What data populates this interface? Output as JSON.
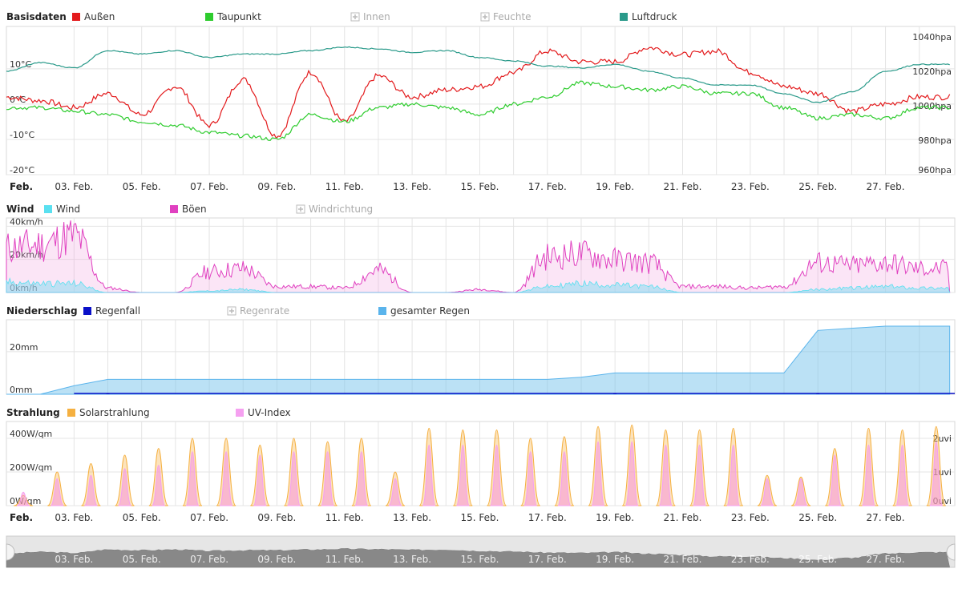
{
  "month_label": "Feb.",
  "date_ticks": [
    "03. Feb.",
    "05. Feb.",
    "07. Feb.",
    "09. Feb.",
    "11. Feb.",
    "13. Feb.",
    "15. Feb.",
    "17. Feb.",
    "19. Feb.",
    "21. Feb.",
    "23. Feb.",
    "25. Feb.",
    "27. Feb."
  ],
  "panels": [
    {
      "id": "basisdaten",
      "title": "Basisdaten",
      "legend": [
        {
          "label": "Außen",
          "color": "#e31a1c",
          "enabled": true
        },
        {
          "label": "Taupunkt",
          "color": "#2ecc2e",
          "enabled": true
        },
        {
          "label": "Innen",
          "color": "#bbbbbb",
          "enabled": false
        },
        {
          "label": "Feuchte",
          "color": "#bbbbbb",
          "enabled": false
        },
        {
          "label": "Luftdruck",
          "color": "#2a9a8a",
          "enabled": true
        }
      ],
      "left_axis": {
        "ticks": [
          "10°C",
          "0°C",
          "-10°C",
          "-20°C"
        ],
        "range": [
          -20,
          22
        ]
      },
      "right_axis": {
        "ticks": [
          "1040hpa",
          "1020hpa",
          "1000hpa",
          "980hpa",
          "960hpa"
        ],
        "range": [
          960,
          1046
        ]
      }
    },
    {
      "id": "wind",
      "title": "Wind",
      "legend": [
        {
          "label": "Wind",
          "color": "#5ae0f0",
          "enabled": true
        },
        {
          "label": "Böen",
          "color": "#e040c0",
          "enabled": true
        },
        {
          "label": "Windrichtung",
          "color": "#bbbbbb",
          "enabled": false
        }
      ],
      "left_axis": {
        "ticks": [
          "40km/h",
          "20km/h",
          "0km/h"
        ],
        "range": [
          0,
          45
        ]
      }
    },
    {
      "id": "niederschlag",
      "title": "Niederschlag",
      "legend": [
        {
          "label": "Regenfall",
          "color": "#0a10c8",
          "enabled": true
        },
        {
          "label": "Regenrate",
          "color": "#bbbbbb",
          "enabled": false
        },
        {
          "label": "gesamter Regen",
          "color": "#5ab4ec",
          "enabled": true
        }
      ],
      "left_axis": {
        "ticks": [
          "20mm",
          "0mm"
        ],
        "range": [
          0,
          35
        ]
      }
    },
    {
      "id": "strahlung",
      "title": "Strahlung",
      "legend": [
        {
          "label": "Solarstrahlung",
          "color": "#f5b040",
          "enabled": true
        },
        {
          "label": "UV-Index",
          "color": "#f5a0f0",
          "enabled": true
        }
      ],
      "left_axis": {
        "ticks": [
          "400W/qm",
          "200W/qm",
          "0W/qm"
        ],
        "range": [
          0,
          500
        ]
      },
      "right_axis": {
        "ticks": [
          "2uvi",
          "1uvi",
          "0uvi"
        ],
        "range": [
          0,
          2.5
        ]
      }
    }
  ],
  "chart_data": [
    {
      "type": "line",
      "title": "Basisdaten",
      "x_range": [
        "01. Feb.",
        "28. Feb."
      ],
      "series": [
        {
          "name": "Außen",
          "unit": "°C",
          "days": [
            1,
            2,
            3,
            4,
            5,
            6,
            7,
            8,
            9,
            10,
            11,
            12,
            13,
            14,
            15,
            16,
            17,
            18,
            19,
            20,
            21,
            22,
            23,
            24,
            25,
            26,
            27,
            28
          ],
          "values": [
            2,
            1,
            -1,
            3,
            -3,
            5,
            -6,
            7,
            -9,
            9,
            -5,
            8,
            2,
            4,
            5,
            9,
            15,
            12,
            12,
            16,
            14,
            15,
            9,
            5,
            3,
            -2,
            0,
            2
          ]
        },
        {
          "name": "Taupunkt",
          "unit": "°C",
          "days": [
            1,
            2,
            3,
            4,
            5,
            6,
            7,
            8,
            9,
            10,
            11,
            12,
            13,
            14,
            15,
            16,
            17,
            18,
            19,
            20,
            21,
            22,
            23,
            24,
            25,
            26,
            27,
            28
          ],
          "values": [
            -1,
            -1,
            -2,
            -3,
            -5,
            -6,
            -8,
            -9,
            -10,
            -3,
            -5,
            -1,
            0,
            -1,
            -3,
            0,
            2,
            6,
            5,
            4,
            5,
            3,
            3,
            -1,
            -4,
            -3,
            -4,
            -1
          ]
        },
        {
          "name": "Luftdruck",
          "unit": "hPa",
          "days": [
            1,
            2,
            3,
            4,
            5,
            6,
            7,
            8,
            9,
            10,
            11,
            12,
            13,
            14,
            15,
            16,
            17,
            18,
            19,
            20,
            21,
            22,
            23,
            24,
            25,
            26,
            27,
            28
          ],
          "values": [
            1020,
            1025,
            1022,
            1032,
            1030,
            1032,
            1028,
            1030,
            1030,
            1032,
            1034,
            1033,
            1031,
            1032,
            1028,
            1026,
            1023,
            1022,
            1024,
            1020,
            1016,
            1012,
            1012,
            1007,
            1002,
            1008,
            1020,
            1024
          ]
        }
      ]
    },
    {
      "type": "area",
      "title": "Wind",
      "x_range": [
        "01. Feb.",
        "28. Feb."
      ],
      "series": [
        {
          "name": "Wind",
          "unit": "km/h",
          "days": [
            1,
            2,
            3,
            4,
            5,
            6,
            7,
            8,
            9,
            10,
            11,
            12,
            13,
            14,
            15,
            16,
            17,
            18,
            19,
            20,
            21,
            22,
            23,
            24,
            25,
            26,
            27,
            28
          ],
          "values": [
            7,
            6,
            6,
            0,
            0,
            0,
            1,
            2,
            0,
            0,
            0,
            0,
            0,
            0,
            0,
            0,
            4,
            6,
            5,
            4,
            0,
            0,
            0,
            0,
            2,
            3,
            4,
            3
          ]
        },
        {
          "name": "Böen",
          "unit": "km/h",
          "days": [
            1,
            2,
            3,
            4,
            5,
            6,
            7,
            8,
            9,
            10,
            11,
            12,
            13,
            14,
            15,
            16,
            17,
            18,
            19,
            20,
            21,
            22,
            23,
            24,
            25,
            26,
            27,
            28
          ],
          "values": [
            30,
            32,
            38,
            3,
            0,
            0,
            14,
            16,
            4,
            4,
            3,
            15,
            0,
            0,
            2,
            0,
            24,
            26,
            22,
            20,
            4,
            4,
            3,
            4,
            20,
            18,
            20,
            16
          ]
        }
      ]
    },
    {
      "type": "area",
      "title": "Niederschlag",
      "x_range": [
        "01. Feb.",
        "28. Feb."
      ],
      "series": [
        {
          "name": "gesamter Regen",
          "unit": "mm",
          "days": [
            1,
            2,
            3,
            4,
            5,
            6,
            7,
            8,
            9,
            10,
            11,
            12,
            13,
            14,
            15,
            16,
            17,
            18,
            19,
            20,
            21,
            22,
            23,
            24,
            25,
            26,
            27,
            28
          ],
          "values": [
            0,
            0,
            4,
            7,
            7,
            7,
            7,
            7,
            7,
            7,
            7,
            7,
            7,
            7,
            7,
            7,
            7,
            8,
            10,
            10,
            10,
            10,
            10,
            10,
            30,
            31,
            32,
            32
          ]
        },
        {
          "name": "Regenfall",
          "unit": "mm",
          "days": [
            1,
            2,
            3,
            4,
            5,
            6,
            7,
            8,
            9,
            10,
            11,
            12,
            13,
            14,
            15,
            16,
            17,
            18,
            19,
            20,
            21,
            22,
            23,
            24,
            25,
            26,
            27,
            28
          ],
          "values": [
            0,
            0,
            0,
            0.3,
            0,
            0,
            0,
            0,
            0,
            0,
            0,
            0,
            0,
            0,
            0,
            0,
            0,
            0,
            0.2,
            0,
            0,
            0,
            0,
            0,
            0.5,
            0,
            0,
            0
          ]
        }
      ]
    },
    {
      "type": "area",
      "title": "Strahlung",
      "x_range": [
        "01. Feb.",
        "28. Feb."
      ],
      "series": [
        {
          "name": "Solarstrahlung",
          "unit": "W/qm",
          "days": [
            1,
            2,
            3,
            4,
            5,
            6,
            7,
            8,
            9,
            10,
            11,
            12,
            13,
            14,
            15,
            16,
            17,
            18,
            19,
            20,
            21,
            22,
            23,
            24,
            25,
            26,
            27,
            28
          ],
          "values": [
            60,
            200,
            250,
            300,
            340,
            400,
            400,
            360,
            400,
            380,
            400,
            200,
            460,
            450,
            450,
            400,
            410,
            470,
            480,
            450,
            450,
            460,
            180,
            170,
            340,
            460,
            450,
            470
          ]
        },
        {
          "name": "UV-Index",
          "unit": "uvi",
          "days": [
            1,
            2,
            3,
            4,
            5,
            6,
            7,
            8,
            9,
            10,
            11,
            12,
            13,
            14,
            15,
            16,
            17,
            18,
            19,
            20,
            21,
            22,
            23,
            24,
            25,
            26,
            27,
            28
          ],
          "values": [
            0.4,
            0.8,
            0.9,
            1.1,
            1.2,
            1.6,
            1.6,
            1.5,
            1.6,
            1.6,
            1.6,
            0.8,
            1.8,
            1.8,
            1.8,
            1.6,
            1.6,
            1.9,
            1.9,
            1.8,
            1.8,
            1.8,
            0.8,
            0.8,
            1.5,
            1.8,
            1.8,
            1.9
          ]
        }
      ]
    }
  ]
}
